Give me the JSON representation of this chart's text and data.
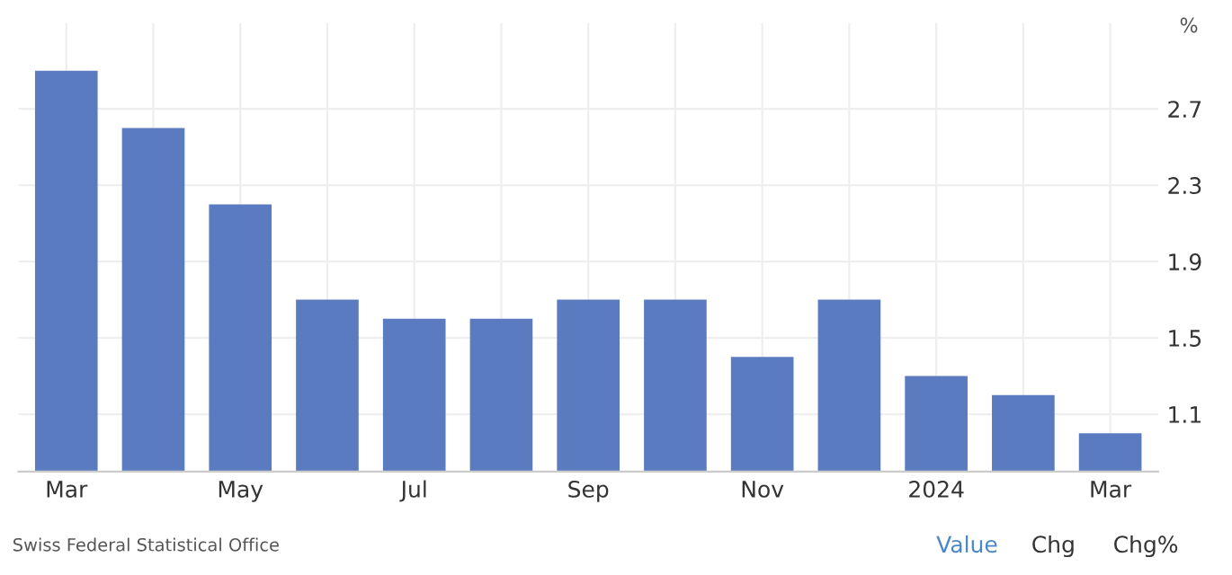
{
  "chart_data": {
    "type": "bar",
    "ylabel": "%",
    "categories": [
      "Mar",
      null,
      "May",
      null,
      "Jul",
      null,
      "Sep",
      null,
      "Nov",
      null,
      "2024",
      null,
      "Mar"
    ],
    "values": [
      2.9,
      2.6,
      2.2,
      1.7,
      1.6,
      1.6,
      1.7,
      1.7,
      1.4,
      1.7,
      1.3,
      1.2,
      1.0
    ],
    "color": "#5b7bc0",
    "ylim": [
      0.8,
      3.15
    ],
    "yticks": [
      1.1,
      1.5,
      1.9,
      2.3,
      2.7
    ],
    "grid": true,
    "annotations": [
      "Swiss Federal Statistical Office",
      "Value",
      "Chg",
      "Chg%"
    ]
  }
}
